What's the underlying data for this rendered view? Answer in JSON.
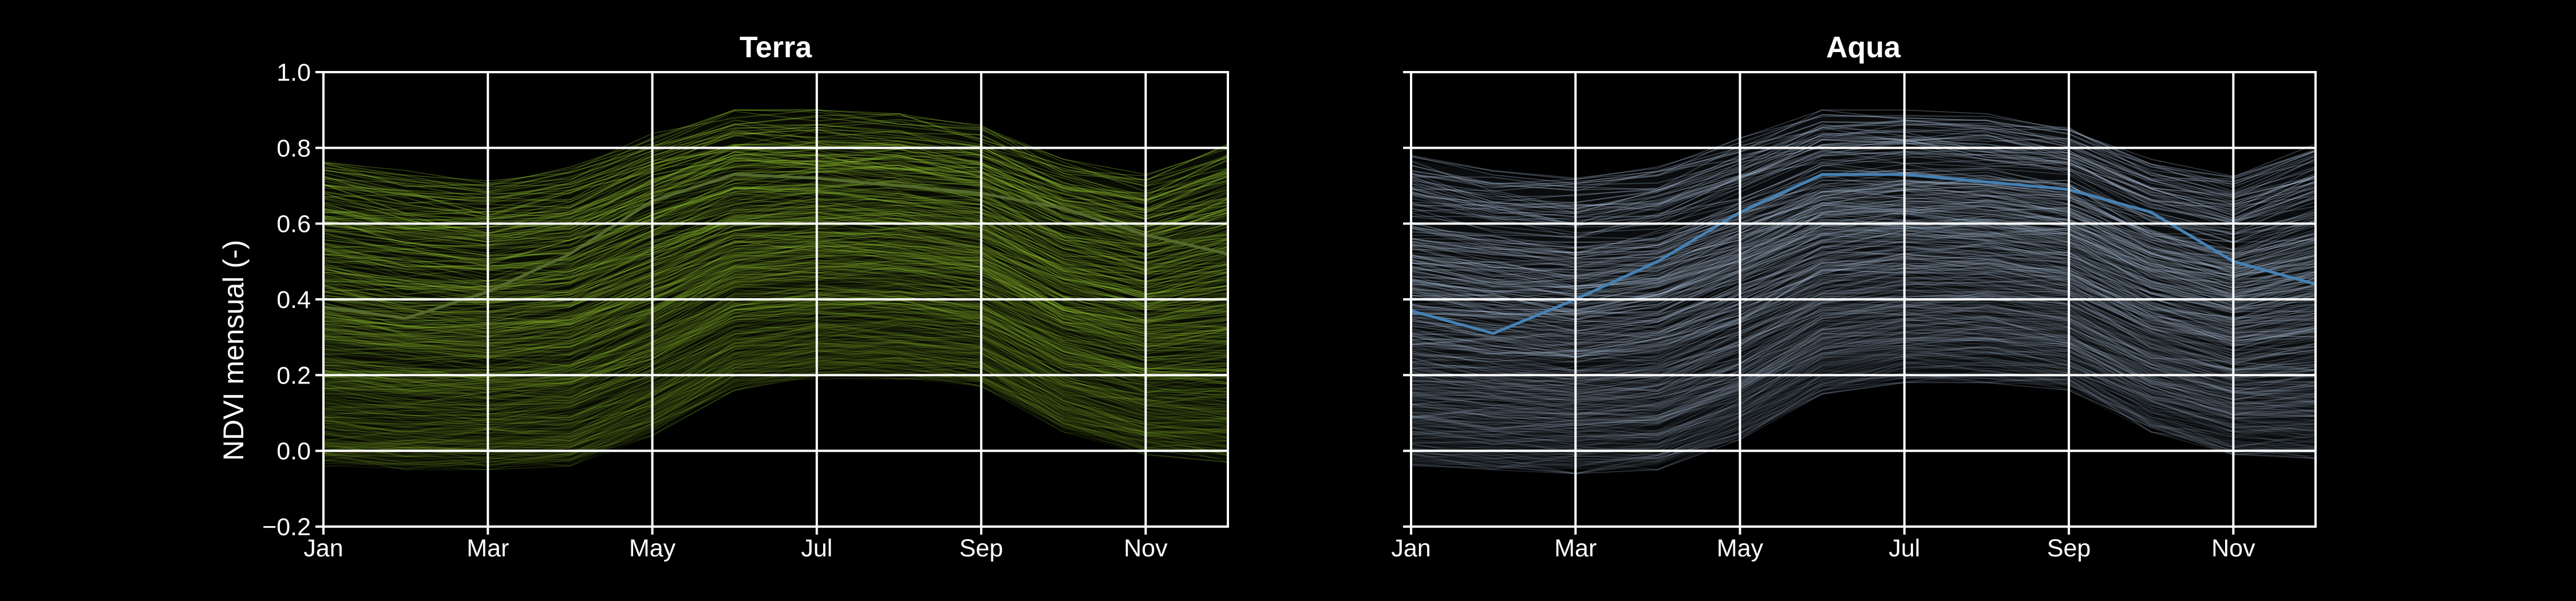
{
  "chart_data": [
    {
      "type": "line",
      "title": "Terra",
      "xlabel": "",
      "ylabel": "NDVI mensual (-)",
      "x": [
        "Jan",
        "Feb",
        "Mar",
        "Apr",
        "May",
        "Jun",
        "Jul",
        "Aug",
        "Sep",
        "Oct",
        "Nov",
        "Dec"
      ],
      "xtick_labels": [
        "Jan",
        "Mar",
        "May",
        "Jul",
        "Sep",
        "Nov"
      ],
      "ytick_labels": [
        "−0.2",
        "0.0",
        "0.2",
        "0.4",
        "0.6",
        "0.8",
        "1.0"
      ],
      "yticks": [
        -0.2,
        0.0,
        0.2,
        0.4,
        0.6,
        0.8,
        1.0
      ],
      "ylim": [
        -0.2,
        1.0
      ],
      "grid": true,
      "colors": {
        "lines": "#9acd32",
        "mean": "#556b2f",
        "background": "#000000"
      },
      "envelope": {
        "upper": [
          0.77,
          0.73,
          0.71,
          0.74,
          0.83,
          0.89,
          0.89,
          0.88,
          0.85,
          0.76,
          0.72,
          0.8
        ],
        "lower": [
          -0.03,
          -0.04,
          -0.04,
          -0.03,
          0.05,
          0.17,
          0.2,
          0.2,
          0.18,
          0.06,
          0.0,
          -0.02
        ]
      },
      "series": [
        {
          "values": [
            0.38,
            0.35,
            0.42,
            0.52,
            0.66,
            0.73,
            0.72,
            0.7,
            0.68,
            0.64,
            0.57,
            0.52
          ]
        }
      ]
    },
    {
      "type": "line",
      "title": "Aqua",
      "xlabel": "",
      "ylabel": "",
      "x": [
        "Jan",
        "Feb",
        "Mar",
        "Apr",
        "May",
        "Jun",
        "Jul",
        "Aug",
        "Sep",
        "Oct",
        "Nov",
        "Dec"
      ],
      "xtick_labels": [
        "Jan",
        "Mar",
        "May",
        "Jul",
        "Sep",
        "Nov"
      ],
      "yticks": [
        -0.2,
        0.0,
        0.2,
        0.4,
        0.6,
        0.8,
        1.0
      ],
      "ylim": [
        -0.2,
        1.0
      ],
      "grid": true,
      "colors": {
        "lines": "#b0c4de",
        "mean": "#4682b4",
        "background": "#000000"
      },
      "envelope": {
        "upper": [
          0.77,
          0.73,
          0.71,
          0.74,
          0.82,
          0.89,
          0.89,
          0.88,
          0.85,
          0.76,
          0.72,
          0.8
        ],
        "lower": [
          -0.03,
          -0.04,
          -0.05,
          -0.04,
          0.04,
          0.16,
          0.19,
          0.19,
          0.17,
          0.06,
          0.0,
          -0.01
        ]
      },
      "series": [
        {
          "values": [
            0.37,
            0.31,
            0.4,
            0.5,
            0.63,
            0.73,
            0.73,
            0.71,
            0.69,
            0.63,
            0.5,
            0.44
          ]
        }
      ]
    }
  ]
}
